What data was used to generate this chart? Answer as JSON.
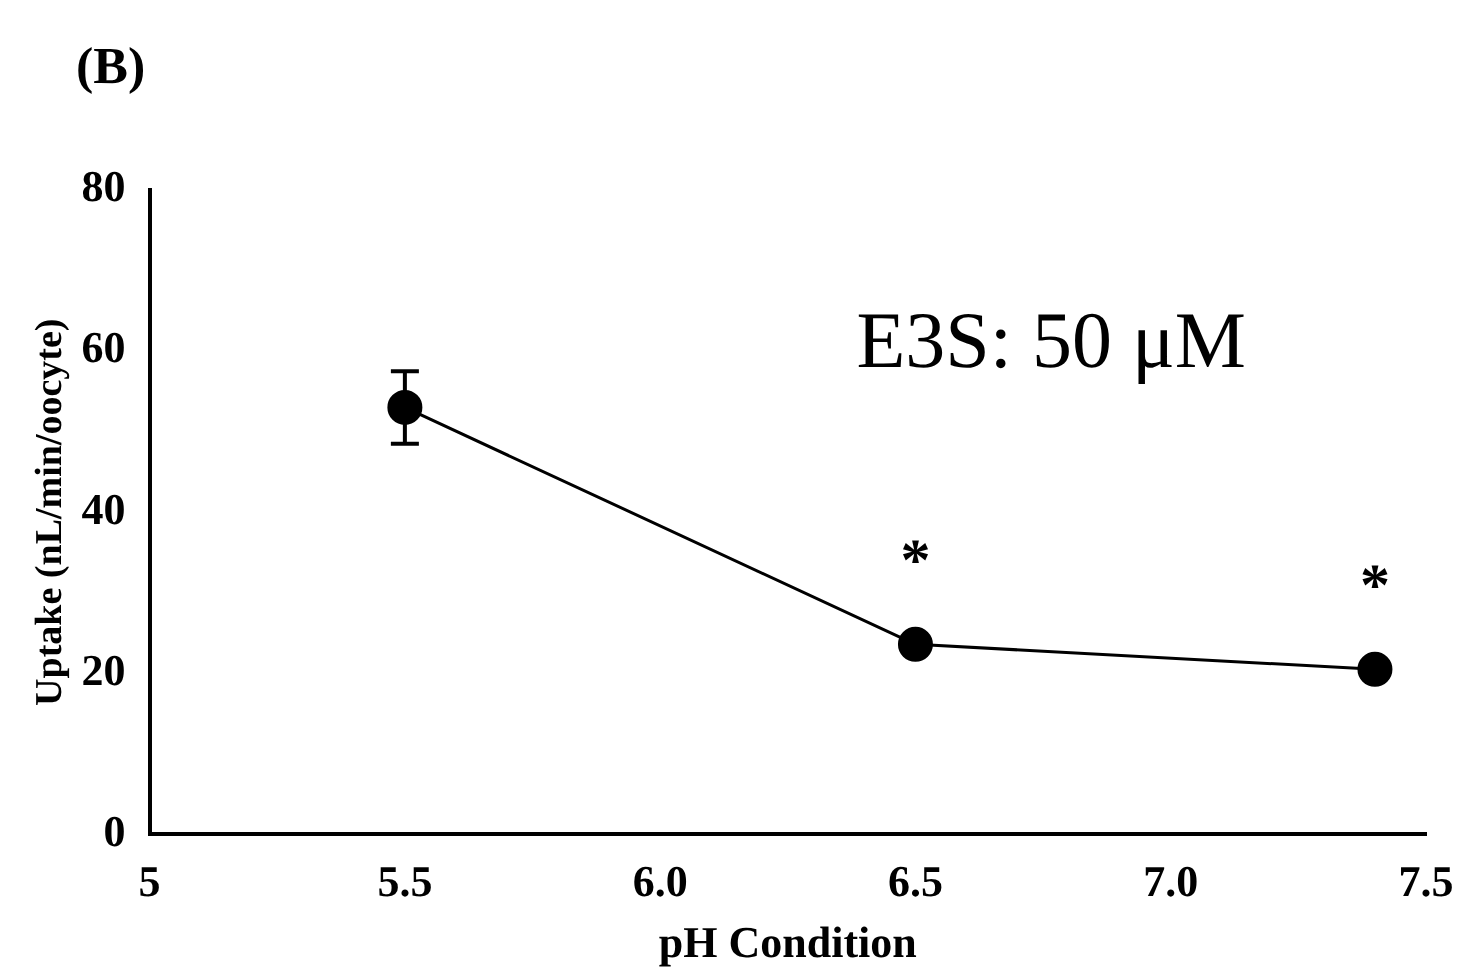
{
  "chart_data": {
    "type": "line",
    "title": "(B)",
    "xlabel": "pH Condition",
    "ylabel": "Uptake (nL/min/oocyte)",
    "x": [
      5.5,
      6.5,
      7.4
    ],
    "series": [
      {
        "color": "#000000",
        "values": [
          53,
          23.6,
          20.5
        ],
        "errors": [
          4.5,
          null,
          null
        ]
      }
    ],
    "xlim": [
      5,
      7.5
    ],
    "xticks": [
      5,
      5.5,
      {
        "value": 6,
        "label": "6.0"
      },
      6.5,
      {
        "value": 7,
        "label": "7.0"
      },
      7.5
    ],
    "ylim": [
      0,
      80
    ],
    "yticks": [
      0,
      20,
      40,
      60,
      80
    ],
    "annotations": [
      "E3S: 50 μM",
      {
        "text": "*",
        "x": 6.5,
        "y": 23.6
      },
      {
        "text": "*",
        "x": 7.4,
        "y": 20.5
      }
    ],
    "grid": false,
    "legend": false,
    "marker": "circle",
    "line_style": "solid"
  }
}
